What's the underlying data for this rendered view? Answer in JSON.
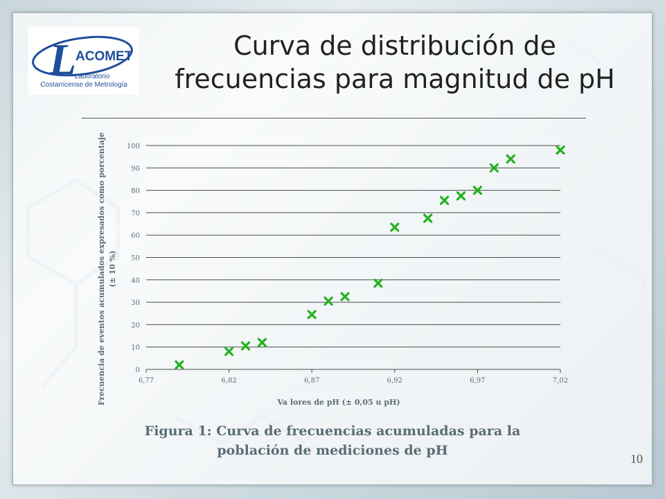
{
  "slide": {
    "title_line1": "Curva de distribución de",
    "title_line2": "frecuencias para magnitud de pH",
    "caption_line1": "Figura 1: Curva de frecuencias acumuladas para la",
    "caption_line2": "población de mediciones de pH",
    "page_number": "10",
    "logo": {
      "letter": "L",
      "name": "ACOMET",
      "line1": "Laboratorio",
      "line2": "Costarricense de Metrología",
      "brand_color": "#1f4e9a"
    }
  },
  "chart_data": {
    "type": "scatter",
    "xlabel": "Va lores de pH (± 0,05 u pH)",
    "ylabel_line1": "Frecuencia de eventos acumulados expresados como porcentaje",
    "ylabel_line2": "(± 10 %)",
    "xlim": [
      6.77,
      7.02
    ],
    "ylim": [
      0,
      100
    ],
    "x_ticks": [
      "6,77",
      "6,82",
      "6,87",
      "6,92",
      "6,97",
      "7,02"
    ],
    "x_tick_values": [
      6.77,
      6.82,
      6.87,
      6.92,
      6.97,
      7.02
    ],
    "y_ticks": [
      "0",
      "10",
      "20",
      "30",
      "40",
      "50",
      "60",
      "70",
      "80",
      "90",
      "100"
    ],
    "y_tick_values": [
      0,
      10,
      20,
      30,
      40,
      50,
      60,
      70,
      80,
      90,
      100
    ],
    "grid": "horizontal",
    "marker": "x",
    "marker_color": "#22b21f",
    "series": [
      {
        "x": [
          6.79,
          6.82,
          6.83,
          6.84,
          6.87,
          6.88,
          6.89,
          6.91,
          6.92,
          6.94,
          6.95,
          6.96,
          6.97,
          6.98,
          6.99,
          7.02
        ],
        "y": [
          2,
          8,
          10.5,
          12,
          24.5,
          30.5,
          32.5,
          38.5,
          63.5,
          67.5,
          75.5,
          77.5,
          80,
          90,
          94,
          98
        ]
      }
    ]
  }
}
